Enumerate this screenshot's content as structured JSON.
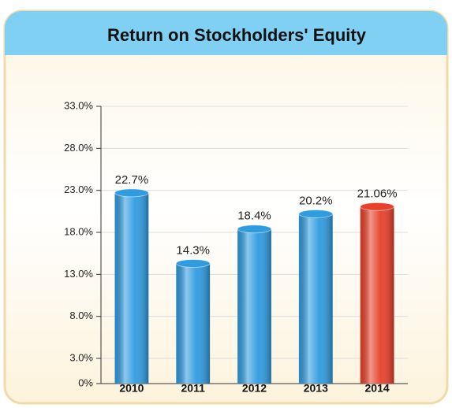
{
  "chart_data": {
    "type": "bar",
    "title": "Return on Stockholders' Equity",
    "categories": [
      "2010",
      "2011",
      "2012",
      "2013",
      "2014"
    ],
    "values": [
      22.7,
      14.3,
      18.4,
      20.2,
      21.06
    ],
    "value_labels": [
      "22.7%",
      "14.3%",
      "18.4%",
      "20.2%",
      "21.06%"
    ],
    "colors": [
      "#2f9be0",
      "#2f9be0",
      "#2f9be0",
      "#2f9be0",
      "#e8402a"
    ],
    "ylim": [
      0,
      33
    ],
    "yticks": [
      {
        "value": 0,
        "label": "0%"
      },
      {
        "value": 3,
        "label": "3.0%"
      },
      {
        "value": 8,
        "label": "8.0%"
      },
      {
        "value": 13,
        "label": "13.0%"
      },
      {
        "value": 18,
        "label": "18.0%"
      },
      {
        "value": 23,
        "label": "23.0%"
      },
      {
        "value": 28,
        "label": "28.0%"
      },
      {
        "value": 33,
        "label": "33.0%"
      }
    ],
    "grid": true
  }
}
